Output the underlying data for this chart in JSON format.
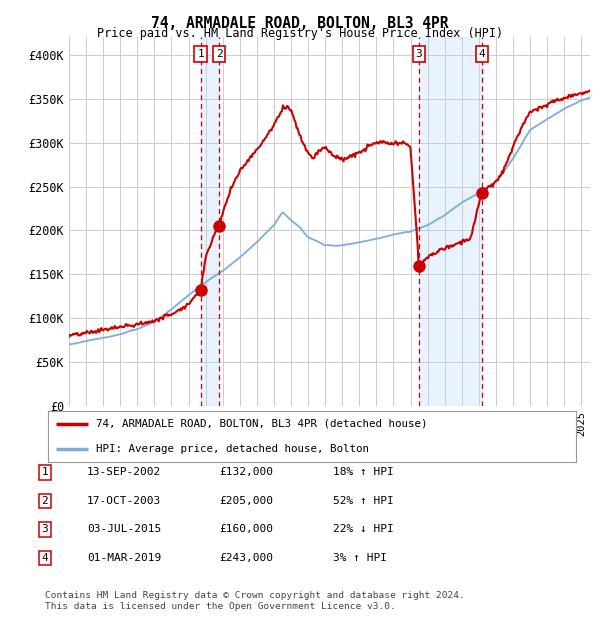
{
  "title": "74, ARMADALE ROAD, BOLTON, BL3 4PR",
  "subtitle": "Price paid vs. HM Land Registry's House Price Index (HPI)",
  "legend_line1": "74, ARMADALE ROAD, BOLTON, BL3 4PR (detached house)",
  "legend_line2": "HPI: Average price, detached house, Bolton",
  "footer1": "Contains HM Land Registry data © Crown copyright and database right 2024.",
  "footer2": "This data is licensed under the Open Government Licence v3.0.",
  "transactions": [
    {
      "num": 1,
      "date": "13-SEP-2002",
      "price": 132000,
      "pct": "18%",
      "dir": "↑"
    },
    {
      "num": 2,
      "date": "17-OCT-2003",
      "price": 205000,
      "pct": "52%",
      "dir": "↑"
    },
    {
      "num": 3,
      "date": "03-JUL-2015",
      "price": 160000,
      "pct": "22%",
      "dir": "↓"
    },
    {
      "num": 4,
      "date": "01-MAR-2019",
      "price": 243000,
      "pct": "3%",
      "dir": "↑"
    }
  ],
  "sale_dates_decimal": [
    2002.708,
    2003.792,
    2015.5,
    2019.167
  ],
  "sale_prices": [
    132000,
    205000,
    160000,
    243000
  ],
  "red_line_color": "#cc0000",
  "blue_line_color": "#7aade0",
  "dot_color": "#cc0000",
  "dashed_line_color": "#cc0000",
  "shade_color": "#ddeeff",
  "background_color": "#ffffff",
  "grid_color": "#cccccc",
  "y_ticks": [
    0,
    50000,
    100000,
    150000,
    200000,
    250000,
    300000,
    350000,
    400000
  ],
  "y_labels": [
    "£0",
    "£50K",
    "£100K",
    "£150K",
    "£200K",
    "£250K",
    "£300K",
    "£350K",
    "£400K"
  ],
  "ylim": [
    0,
    420000
  ],
  "xlim_start": 1995.0,
  "xlim_end": 2025.5
}
